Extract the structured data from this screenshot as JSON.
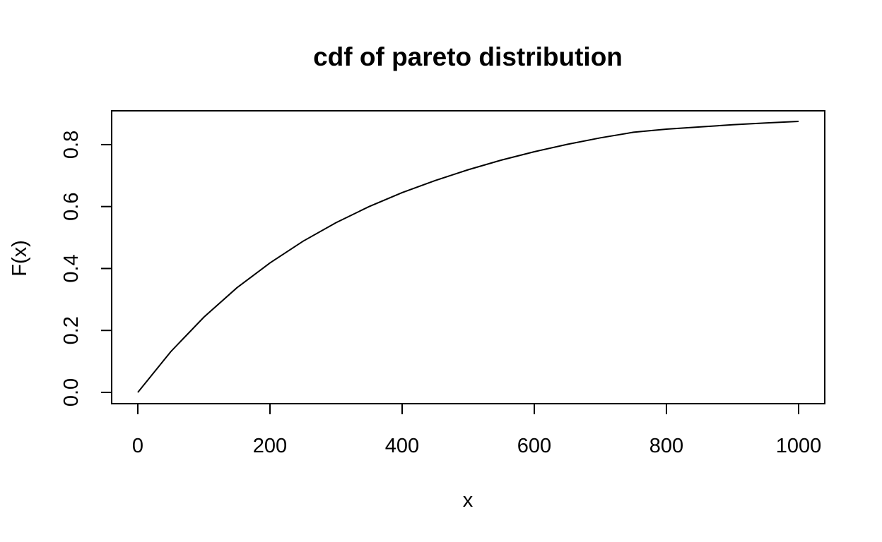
{
  "chart_data": {
    "type": "line",
    "title": "cdf of pareto distribution",
    "xlabel": "x",
    "ylabel": "F(x)",
    "xlim": [
      0,
      1000
    ],
    "ylim": [
      0,
      0.875
    ],
    "x_ticks": [
      0,
      200,
      400,
      600,
      800,
      1000
    ],
    "x_tick_labels": [
      "0",
      "200",
      "400",
      "600",
      "800",
      "1000"
    ],
    "y_ticks": [
      0.0,
      0.2,
      0.4,
      0.6,
      0.8
    ],
    "y_tick_labels": [
      "0.0",
      "0.2",
      "0.4",
      "0.6",
      "0.8"
    ],
    "grid": false,
    "legend": "none",
    "line_color": "#000000",
    "series": [
      {
        "x": [
          0,
          50,
          100,
          150,
          200,
          250,
          300,
          350,
          400,
          450,
          500,
          550,
          600,
          650,
          700,
          750,
          800,
          850,
          900,
          950,
          1000
        ],
        "values": [
          0.0,
          0.132,
          0.243,
          0.338,
          0.418,
          0.488,
          0.548,
          0.6,
          0.645,
          0.684,
          0.719,
          0.75,
          0.777,
          0.801,
          0.822,
          0.84,
          0.85,
          0.857,
          0.864,
          0.87,
          0.875
        ]
      }
    ]
  }
}
